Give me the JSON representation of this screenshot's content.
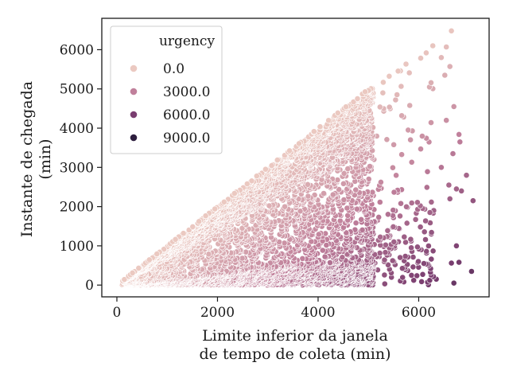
{
  "chart_data": {
    "type": "scatter",
    "xlabel": [
      "Limite inferior da janela",
      "de tempo de coleta (min)"
    ],
    "ylabel": [
      "Instante de chegada",
      "(min)"
    ],
    "xlim": [
      -300,
      7400
    ],
    "ylim": [
      -300,
      6800
    ],
    "xticks": [
      0,
      2000,
      4000,
      6000
    ],
    "xtick_labels": [
      "0",
      "2000",
      "4000",
      "6000"
    ],
    "yticks": [
      0,
      1000,
      2000,
      3000,
      4000,
      5000,
      6000
    ],
    "ytick_labels": [
      "0",
      "1000",
      "2000",
      "3000",
      "4000",
      "5000",
      "6000"
    ],
    "grid": false,
    "hue": {
      "name": "urgency",
      "legend_values": [
        0.0,
        3000.0,
        6000.0,
        9000.0
      ],
      "legend_labels": [
        "0.0",
        "3000.0",
        "6000.0",
        "9000.0"
      ],
      "colors": [
        "#ebc9c1",
        "#c0809b",
        "#7a3e70",
        "#2d1e3e"
      ]
    },
    "legend_placement": "upper-left",
    "description_of_points": "Dense cloud of ~thousands of points bounded above by the diagonal y = x (arrival time <= lower window limit); urgency = x - y; sparse outliers near x 6000-7100.",
    "outliers": [
      {
        "x": 6650,
        "y": 6480
      },
      {
        "x": 6280,
        "y": 6100
      },
      {
        "x": 6550,
        "y": 6070
      },
      {
        "x": 6150,
        "y": 5920
      },
      {
        "x": 6450,
        "y": 5800
      },
      {
        "x": 6620,
        "y": 5570
      },
      {
        "x": 6520,
        "y": 5350
      },
      {
        "x": 6700,
        "y": 4550
      },
      {
        "x": 6550,
        "y": 4200
      },
      {
        "x": 6800,
        "y": 3840
      },
      {
        "x": 6820,
        "y": 3650
      },
      {
        "x": 6680,
        "y": 3350
      },
      {
        "x": 6450,
        "y": 3000
      },
      {
        "x": 6950,
        "y": 2800
      },
      {
        "x": 6600,
        "y": 2550
      },
      {
        "x": 6750,
        "y": 2450
      },
      {
        "x": 6850,
        "y": 2400
      },
      {
        "x": 7080,
        "y": 2150
      },
      {
        "x": 6620,
        "y": 2200
      },
      {
        "x": 6300,
        "y": 1900
      },
      {
        "x": 6750,
        "y": 1000
      },
      {
        "x": 6650,
        "y": 560
      },
      {
        "x": 6800,
        "y": 580
      },
      {
        "x": 7050,
        "y": 350
      },
      {
        "x": 6700,
        "y": 50
      },
      {
        "x": 6350,
        "y": 150
      },
      {
        "x": 6200,
        "y": 500
      },
      {
        "x": 6050,
        "y": 900
      },
      {
        "x": 6250,
        "y": 1300
      }
    ]
  }
}
